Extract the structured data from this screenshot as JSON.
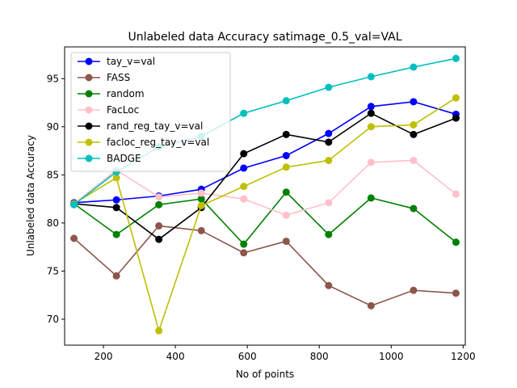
{
  "chart_data": {
    "type": "line",
    "title": "Unlabeled data Accuracy satimage_0.5_val=VAL",
    "xlabel": "No of points",
    "ylabel": "Unlabeled data Accuracy",
    "xlim": [
      92,
      1206
    ],
    "ylim": [
      67.3,
      98.3
    ],
    "x_ticks": [
      200,
      400,
      600,
      800,
      1000,
      1200
    ],
    "y_ticks": [
      70,
      75,
      80,
      85,
      90,
      95
    ],
    "legend_position": "upper-left",
    "grid": false,
    "x": [
      118,
      236,
      354,
      472,
      590,
      708,
      826,
      944,
      1062,
      1180
    ],
    "series": [
      {
        "name": "tay_v=val",
        "color": "#0000ff",
        "values": [
          82.1,
          82.4,
          82.8,
          83.5,
          85.7,
          87.0,
          89.3,
          92.1,
          92.6,
          91.3
        ]
      },
      {
        "name": "FASS",
        "color": "#8c564b",
        "values": [
          78.4,
          74.5,
          79.7,
          79.2,
          76.9,
          78.1,
          73.5,
          71.4,
          73.0,
          72.7
        ]
      },
      {
        "name": "random",
        "color": "#008000",
        "values": [
          82.0,
          78.8,
          81.9,
          82.5,
          77.8,
          83.2,
          78.8,
          82.6,
          81.5,
          78.0
        ]
      },
      {
        "name": "FacLoc",
        "color": "#ffc0cb",
        "values": [
          82.0,
          85.5,
          82.7,
          83.1,
          82.5,
          80.8,
          82.1,
          86.3,
          86.5,
          83.0
        ]
      },
      {
        "name": "rand_reg_tay_v=val",
        "color": "#000000",
        "values": [
          82.0,
          81.6,
          78.3,
          81.6,
          87.2,
          89.2,
          88.4,
          91.4,
          89.2,
          90.9
        ]
      },
      {
        "name": "facloc_reg_tay_v=val",
        "color": "#bfbf00",
        "values": [
          82.0,
          84.7,
          68.8,
          81.8,
          83.8,
          85.8,
          86.5,
          90.0,
          90.2,
          93.0
        ]
      },
      {
        "name": "BADGE",
        "color": "#00bfbf",
        "values": [
          81.9,
          85.3,
          87.9,
          89.0,
          91.4,
          92.7,
          94.1,
          95.2,
          96.2,
          97.1
        ]
      }
    ]
  }
}
